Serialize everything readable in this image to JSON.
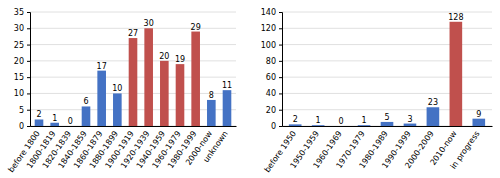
{
  "chart_data": [
    {
      "type": "bar",
      "categories": [
        "before 1800",
        "1800-1819",
        "1820-1839",
        "1840-1859",
        "1860-1879",
        "1880-1899",
        "1900-1919",
        "1920-1939",
        "1940-1959",
        "1960-1979",
        "1980-1999",
        "2000-now",
        "unknown"
      ],
      "values": [
        2,
        1,
        0,
        6,
        17,
        10,
        27,
        30,
        20,
        19,
        29,
        8,
        11
      ],
      "colors": [
        "#4472c4",
        "#4472c4",
        "#4472c4",
        "#4472c4",
        "#4472c4",
        "#4472c4",
        "#c0504d",
        "#c0504d",
        "#c0504d",
        "#c0504d",
        "#c0504d",
        "#4472c4",
        "#4472c4"
      ],
      "ylim": [
        0,
        35
      ],
      "yticks": [
        0,
        5,
        10,
        15,
        20,
        25,
        30,
        35
      ],
      "grid": true,
      "data_labels": true
    },
    {
      "type": "bar",
      "categories": [
        "before 1950",
        "1950-1959",
        "1960-1969",
        "1970-1979",
        "1980-1989",
        "1990-1999",
        "2000-2009",
        "2010-now",
        "in progress"
      ],
      "values": [
        2,
        1,
        0,
        1,
        5,
        3,
        23,
        128,
        9
      ],
      "colors": [
        "#4472c4",
        "#4472c4",
        "#4472c4",
        "#4472c4",
        "#4472c4",
        "#4472c4",
        "#4472c4",
        "#c0504d",
        "#4472c4"
      ],
      "ylim": [
        0,
        140
      ],
      "yticks": [
        0,
        20,
        40,
        60,
        80,
        100,
        120,
        140
      ],
      "grid": true,
      "data_labels": true
    }
  ]
}
